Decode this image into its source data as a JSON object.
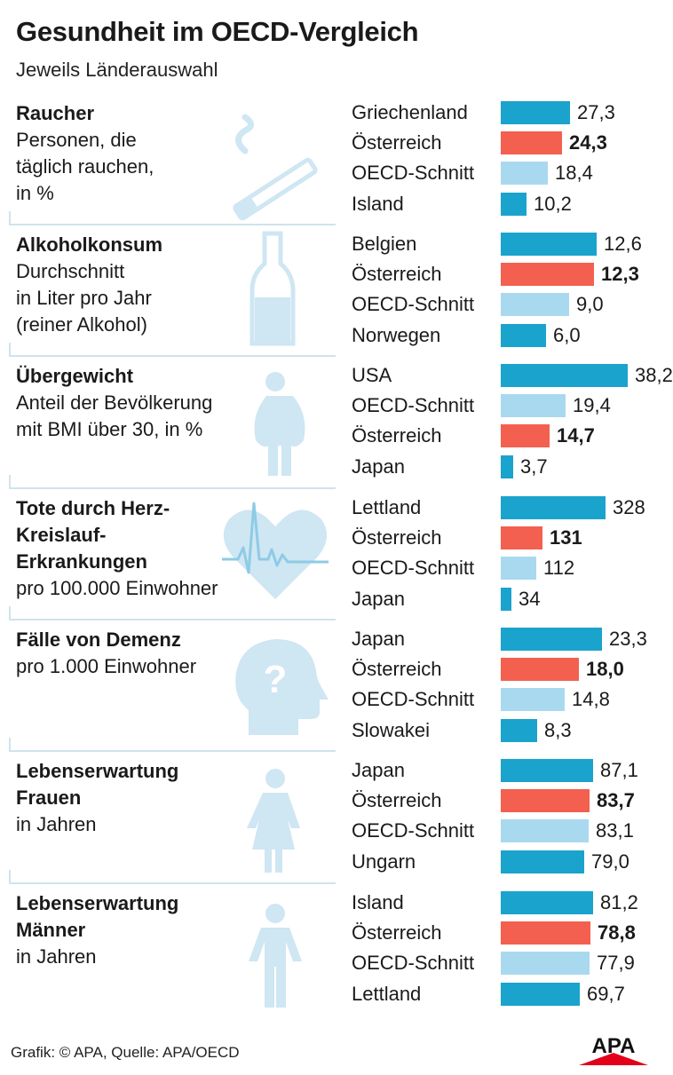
{
  "title": "Gesundheit im OECD-Vergleich",
  "subtitle": "Jeweils Länderauswahl",
  "footer": "Grafik: © APA, Quelle: APA/OECD",
  "logo": "APA",
  "colors": {
    "primary": "#1aa3cc",
    "austria": "#f3604f",
    "oecd": "#a9d9ef",
    "icon": "#cfe6f3"
  },
  "chart_data": [
    {
      "type": "bar",
      "title": "Raucher",
      "description": "Personen, die\ntäglich rauchen,\nin %",
      "icon": "cigarette-icon",
      "categories": [
        "Griechenland",
        "Österreich",
        "OECD-Schnitt",
        "Island"
      ],
      "values": [
        27.3,
        24.3,
        18.4,
        10.2
      ],
      "labels": [
        "27,3",
        "24,3",
        "18,4",
        "10,2"
      ],
      "kinds": [
        "country",
        "austria",
        "oecd",
        "country"
      ]
    },
    {
      "type": "bar",
      "title": "Alkoholkonsum",
      "description": "Durchschnitt\nin Liter pro Jahr\n(reiner Alkohol)",
      "icon": "bottle-icon",
      "categories": [
        "Belgien",
        "Österreich",
        "OECD-Schnitt",
        "Norwegen"
      ],
      "values": [
        12.6,
        12.3,
        9.0,
        6.0
      ],
      "labels": [
        "12,6",
        "12,3",
        "9,0",
        "6,0"
      ],
      "kinds": [
        "country",
        "austria",
        "oecd",
        "country"
      ]
    },
    {
      "type": "bar",
      "title": "Übergewicht",
      "description": "Anteil der Bevölkerung\nmit BMI über 30, in %",
      "icon": "overweight-person-icon",
      "categories": [
        "USA",
        "OECD-Schnitt",
        "Österreich",
        "Japan"
      ],
      "values": [
        38.2,
        19.4,
        14.7,
        3.7
      ],
      "labels": [
        "38,2",
        "19,4",
        "14,7",
        "3,7"
      ],
      "kinds": [
        "country",
        "oecd",
        "austria",
        "country"
      ]
    },
    {
      "type": "bar",
      "title": "Tote durch Herz-\nKreislauf-\nErkrankungen",
      "description": "pro 100.000 Einwohner",
      "icon": "heart-pulse-icon",
      "categories": [
        "Lettland",
        "Österreich",
        "OECD-Schnitt",
        "Japan"
      ],
      "values": [
        328,
        131,
        112,
        34
      ],
      "labels": [
        "328",
        "131",
        "112",
        "34"
      ],
      "kinds": [
        "country",
        "austria",
        "oecd",
        "country"
      ]
    },
    {
      "type": "bar",
      "title": "Fälle von Demenz",
      "description": "pro 1.000 Einwohner",
      "icon": "head-question-icon",
      "categories": [
        "Japan",
        "Österreich",
        "OECD-Schnitt",
        "Slowakei"
      ],
      "values": [
        23.3,
        18.0,
        14.8,
        8.3
      ],
      "labels": [
        "23,3",
        "18,0",
        "14,8",
        "8,3"
      ],
      "kinds": [
        "country",
        "austria",
        "oecd",
        "country"
      ]
    },
    {
      "type": "bar",
      "title": "Lebenserwartung\nFrauen",
      "description": "in Jahren",
      "icon": "woman-icon",
      "categories": [
        "Japan",
        "Österreich",
        "OECD-Schnitt",
        "Ungarn"
      ],
      "values": [
        87.1,
        83.7,
        83.1,
        79.0
      ],
      "labels": [
        "87,1",
        "83,7",
        "83,1",
        "79,0"
      ],
      "kinds": [
        "country",
        "austria",
        "oecd",
        "country"
      ]
    },
    {
      "type": "bar",
      "title": "Lebenserwartung\nMänner",
      "description": "in Jahren",
      "icon": "man-icon",
      "categories": [
        "Island",
        "Österreich",
        "OECD-Schnitt",
        "Lettland"
      ],
      "values": [
        81.2,
        78.8,
        77.9,
        69.7
      ],
      "labels": [
        "81,2",
        "78,8",
        "77,9",
        "69,7"
      ],
      "kinds": [
        "country",
        "austria",
        "oecd",
        "country"
      ]
    }
  ]
}
